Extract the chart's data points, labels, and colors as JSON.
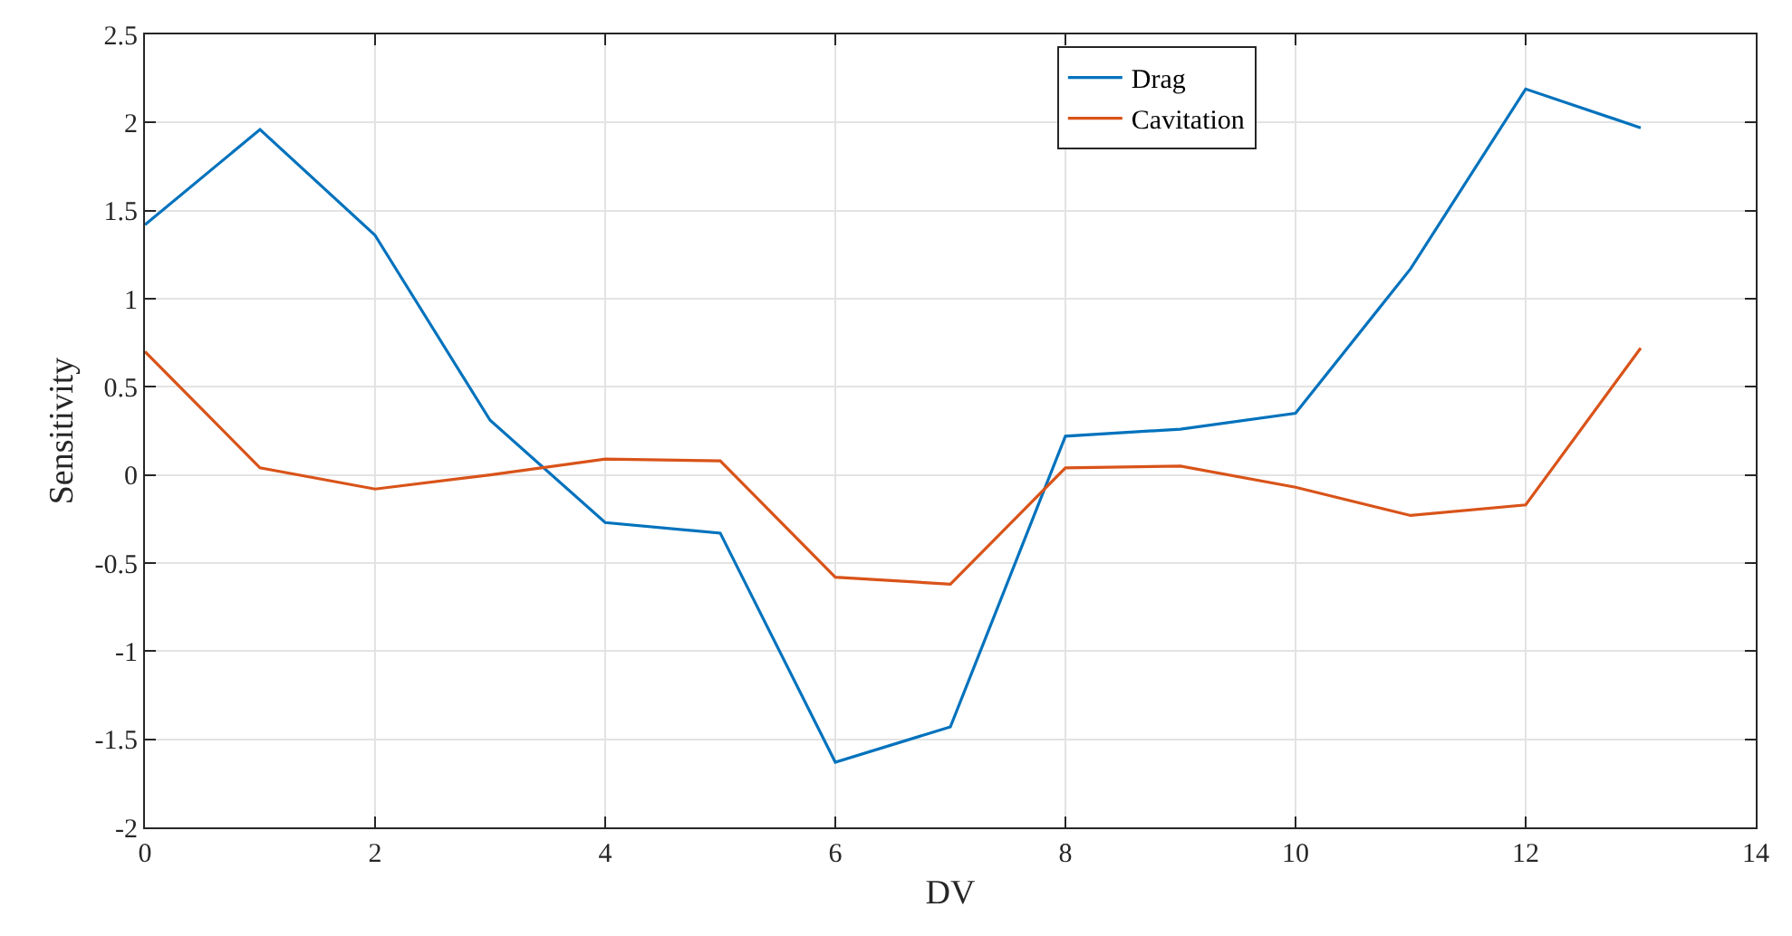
{
  "chart_data": {
    "type": "line",
    "xlabel": "DV",
    "ylabel": "Sensitivity",
    "x": [
      0,
      1,
      2,
      3,
      4,
      5,
      6,
      7,
      8,
      9,
      10,
      11,
      12,
      13
    ],
    "series": [
      {
        "name": "Drag",
        "color": "#0072bd",
        "values": [
          1.42,
          1.96,
          1.36,
          0.31,
          -0.27,
          -0.33,
          -1.63,
          -1.43,
          0.22,
          0.26,
          0.35,
          1.17,
          2.19,
          1.97
        ]
      },
      {
        "name": "Cavitation",
        "color": "#d95319",
        "values": [
          0.7,
          0.04,
          -0.08,
          0.0,
          0.09,
          0.08,
          -0.58,
          -0.62,
          0.04,
          0.05,
          -0.07,
          -0.23,
          -0.17,
          0.72
        ]
      }
    ],
    "xlim": [
      0,
      14
    ],
    "xticks": [
      0,
      2,
      4,
      6,
      8,
      10,
      12,
      14
    ],
    "ylim": [
      -2,
      2.5
    ],
    "yticks": [
      -2,
      -1.5,
      -1,
      -0.5,
      0,
      0.5,
      1,
      1.5,
      2,
      2.5
    ],
    "grid": true,
    "legend": "top right",
    "marker": "none",
    "line_style": "solid"
  }
}
